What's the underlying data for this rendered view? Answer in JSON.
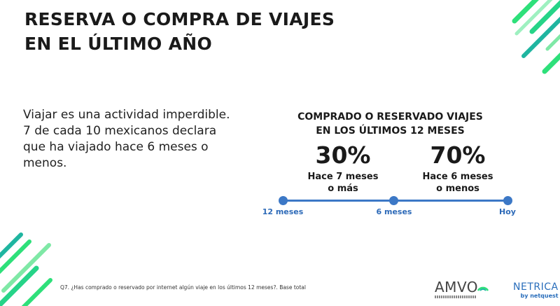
{
  "title": {
    "line1": "RESERVA O COMPRA DE VIAJES",
    "line2": "EN EL ÚLTIMO AÑO"
  },
  "body": {
    "line1": "Viajar es una actividad imperdible.",
    "line2": "7 de cada 10 mexicanos declara",
    "line3": "que ha viajado hace 6 meses o",
    "line4": "menos."
  },
  "infographic": {
    "subtitle_line1": "COMPRADO O RESERVADO VIAJES",
    "subtitle_line2": "EN LOS ÚLTIMOS 12 MESES",
    "left": {
      "value": "30%",
      "desc_line1": "Hace 7 meses",
      "desc_line2": "o más"
    },
    "right": {
      "value": "70%",
      "desc_line1": "Hace 6 meses",
      "desc_line2": "o menos"
    },
    "timeline_labels": [
      "12 meses",
      "6 meses",
      "Hoy"
    ],
    "timeline_color": "#3c78c6"
  },
  "footnote": "Q7. ¿Has comprado o reservado por internet algún viaje en los últimos 12 meses?. Base total",
  "logos": {
    "amvo": "AMVO",
    "netrica": "NETRICA",
    "netrica_sub": "by netquest"
  },
  "colors": {
    "accent_green": "#2ee07a",
    "accent_teal": "#1fb5a0",
    "accent_blue": "#3c78c6"
  }
}
